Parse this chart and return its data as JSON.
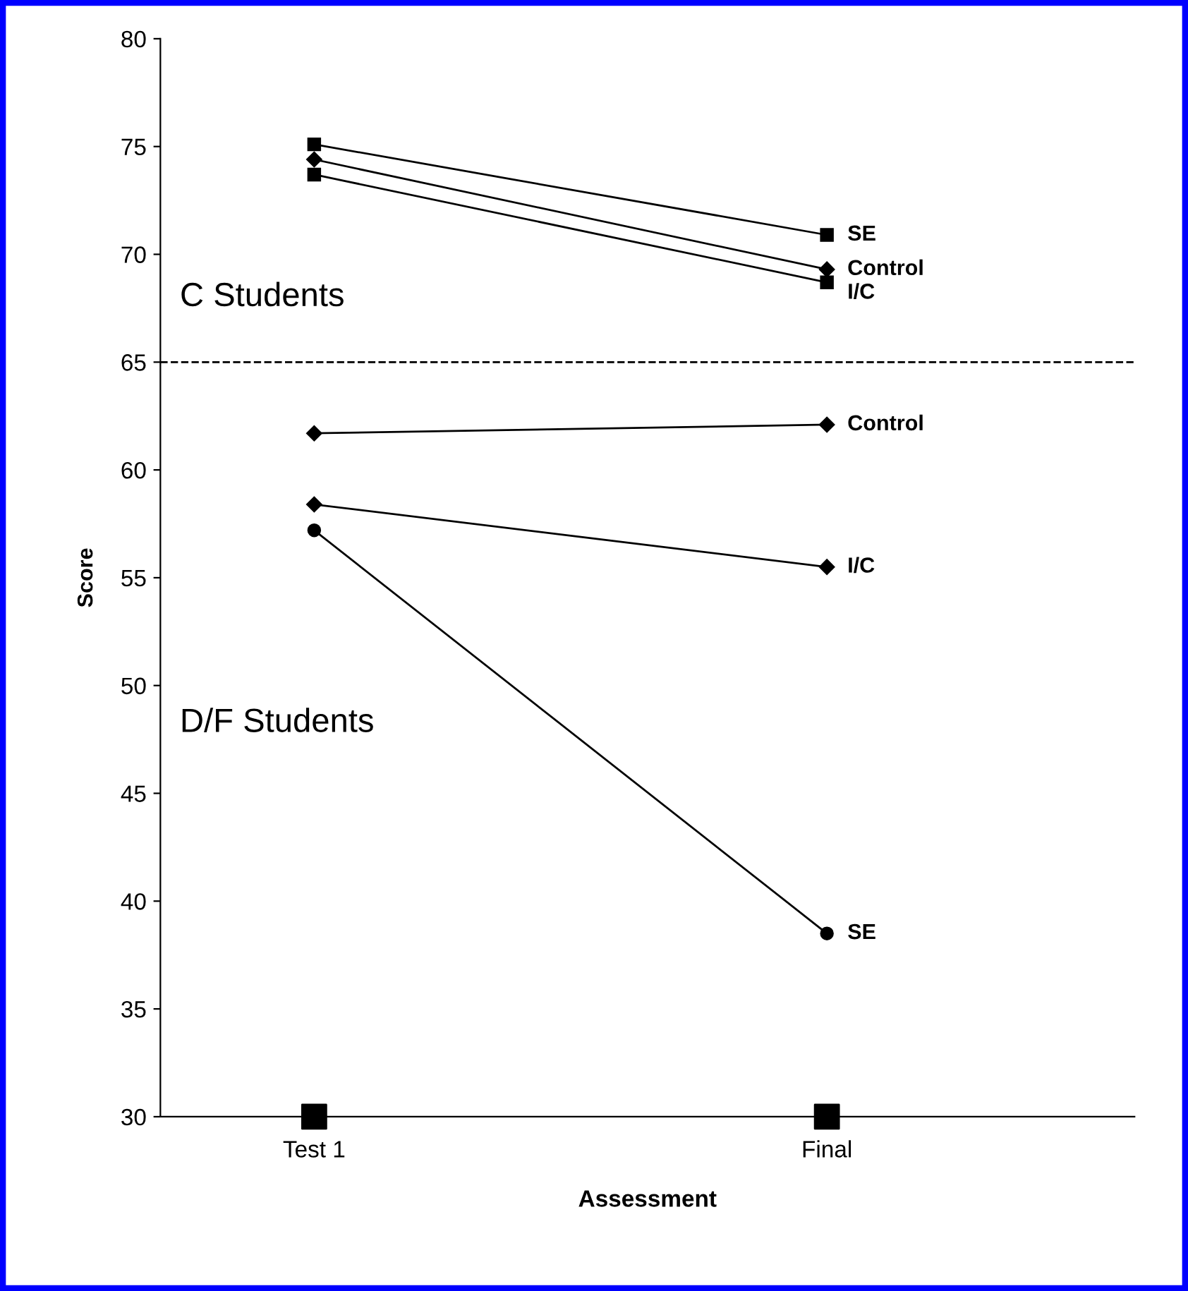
{
  "chart_data": {
    "type": "line",
    "xlabel": "Assessment",
    "ylabel": "Score",
    "categories": [
      "Test 1",
      "Final"
    ],
    "ylim": [
      30,
      80
    ],
    "yticks": [
      30,
      35,
      40,
      45,
      50,
      55,
      60,
      65,
      70,
      75,
      80
    ],
    "grid": false,
    "legend": false,
    "series": [
      {
        "name": "SE",
        "color": "#000000",
        "marker": "square",
        "values": [
          75.1,
          70.9
        ]
      },
      {
        "name": "Control",
        "color": "#000000",
        "marker": "diamond",
        "values": [
          74.4,
          69.3
        ]
      },
      {
        "name": "I/C",
        "color": "#000000",
        "marker": "square",
        "values": [
          73.7,
          68.7
        ]
      },
      {
        "name": "Control",
        "color": "#000000",
        "marker": "diamond",
        "values": [
          61.7,
          62.1
        ]
      },
      {
        "name": "I/C",
        "color": "#000000",
        "marker": "diamond",
        "values": [
          58.4,
          55.5
        ]
      },
      {
        "name": "SE",
        "color": "#000000",
        "marker": "circle",
        "values": [
          57.2,
          38.5
        ]
      },
      {
        "type": "scatter",
        "color": "#000000",
        "marker": "square",
        "values": [
          30,
          30
        ]
      }
    ],
    "ref_lines": [
      {
        "axis": "y",
        "value": 65,
        "line_style": "dashed",
        "color": "#000000"
      }
    ],
    "annotations": [
      "C Students",
      "D/F Students"
    ]
  }
}
